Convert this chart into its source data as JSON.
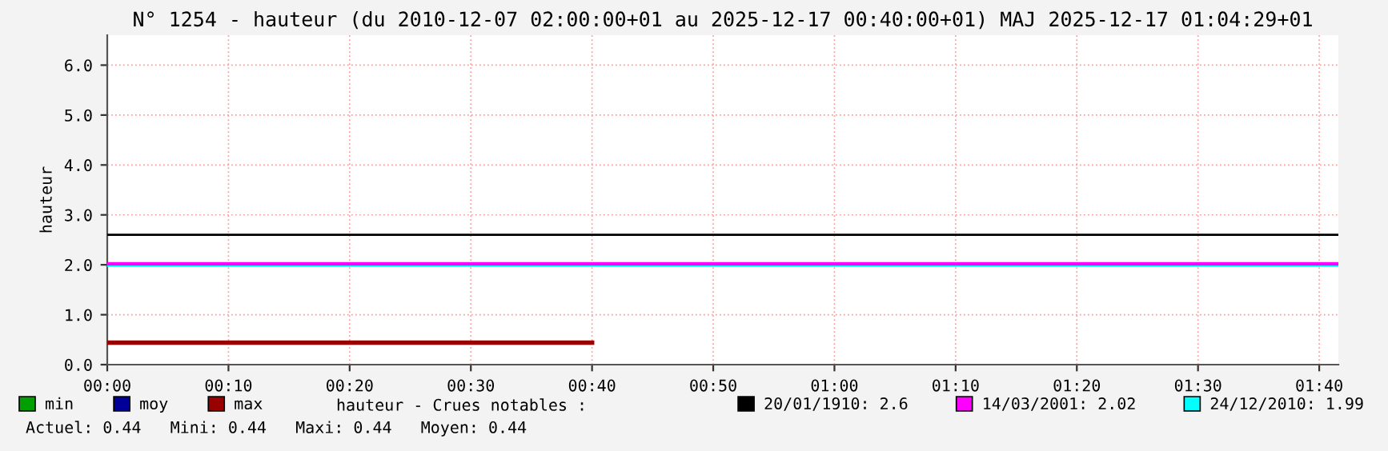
{
  "chart_data": {
    "type": "line",
    "title": "N° 1254 - hauteur (du 2010-12-07 02:00:00+01 au 2025-12-17 00:40:00+01) MAJ 2025-12-17 01:04:29+01",
    "ylabel": "hauteur",
    "x": [
      0,
      0.6667
    ],
    "series": [
      {
        "name": "min",
        "color": "#00a000",
        "values": [
          null,
          null
        ]
      },
      {
        "name": "moy",
        "color": "#000099",
        "values": [
          null,
          null
        ]
      },
      {
        "name": "max",
        "color": "#990000",
        "values": [
          0.44,
          0.44
        ]
      }
    ],
    "ref_lines": [
      {
        "axis": "y",
        "value": 1.99,
        "label": "24/12/2010: 1.99",
        "color": "#00ffff"
      },
      {
        "axis": "y",
        "value": 2.02,
        "label": "14/03/2001: 2.02",
        "color": "#ff00ff"
      },
      {
        "axis": "y",
        "value": 2.6,
        "label": "20/01/1910: 2.6",
        "color": "#000000"
      }
    ],
    "legend_title": "hauteur - Crues notables :",
    "annotations": [
      "Actuel: 0.44   Mini: 0.44   Maxi: 0.44   Moyen: 0.44"
    ],
    "xlim": [
      0,
      1.693
    ],
    "xticks": [
      {
        "value": 0,
        "label": "00:00"
      },
      {
        "value": 0.16667,
        "label": "00:10"
      },
      {
        "value": 0.33333,
        "label": "00:20"
      },
      {
        "value": 0.5,
        "label": "00:30"
      },
      {
        "value": 0.66667,
        "label": "00:40"
      },
      {
        "value": 0.83333,
        "label": "00:50"
      },
      {
        "value": 1,
        "label": "01:00"
      },
      {
        "value": 1.16667,
        "label": "01:10"
      },
      {
        "value": 1.33333,
        "label": "01:20"
      },
      {
        "value": 1.5,
        "label": "01:30"
      },
      {
        "value": 1.66667,
        "label": "01:40"
      }
    ],
    "ylim": [
      0,
      6.6
    ],
    "yticks": [
      {
        "value": 0,
        "label": "0.0"
      },
      {
        "value": 1,
        "label": "1.0"
      },
      {
        "value": 2,
        "label": "2.0"
      },
      {
        "value": 3,
        "label": "3.0"
      },
      {
        "value": 4,
        "label": "4.0"
      },
      {
        "value": 5,
        "label": "5.0"
      },
      {
        "value": 6,
        "label": "6.0"
      }
    ],
    "grid": true,
    "legend": "bottom",
    "marker": "none",
    "line_style": "solid"
  }
}
